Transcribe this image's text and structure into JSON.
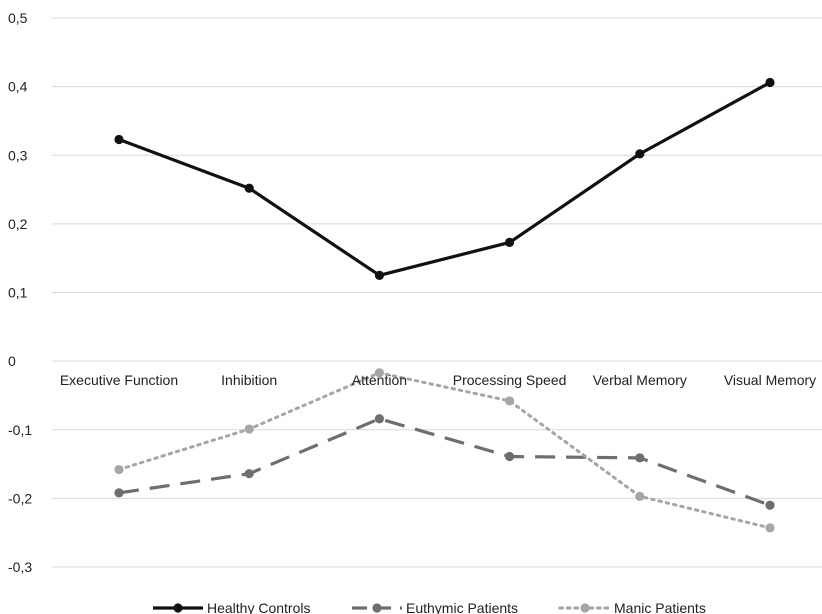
{
  "chart_data": {
    "type": "line",
    "categories": [
      "Executive Function",
      "Inhibition",
      "Attention",
      "Processing Speed",
      "Verbal Memory",
      "Visual Memory"
    ],
    "y_ticks": [
      "0,5",
      "0,4",
      "0,3",
      "0,2",
      "0,1",
      "0",
      "-0,1",
      "-0,2",
      "-0,3"
    ],
    "ylim": [
      -0.3,
      0.5
    ],
    "grid": true,
    "legend_position": "bottom",
    "series": [
      {
        "name": "Healthy Controls",
        "values": [
          0.323,
          0.252,
          0.125,
          0.173,
          0.302,
          0.406
        ],
        "color": "#111111",
        "style": "solid"
      },
      {
        "name": "Euthymic Patients",
        "values": [
          -0.192,
          -0.164,
          -0.084,
          -0.139,
          -0.141,
          -0.21
        ],
        "color": "#6e6e6e",
        "style": "dashed"
      },
      {
        "name": "Manic Patients",
        "values": [
          -0.158,
          -0.099,
          -0.017,
          -0.058,
          -0.197,
          -0.243
        ],
        "color": "#a6a6a6",
        "style": "dotted"
      }
    ]
  }
}
